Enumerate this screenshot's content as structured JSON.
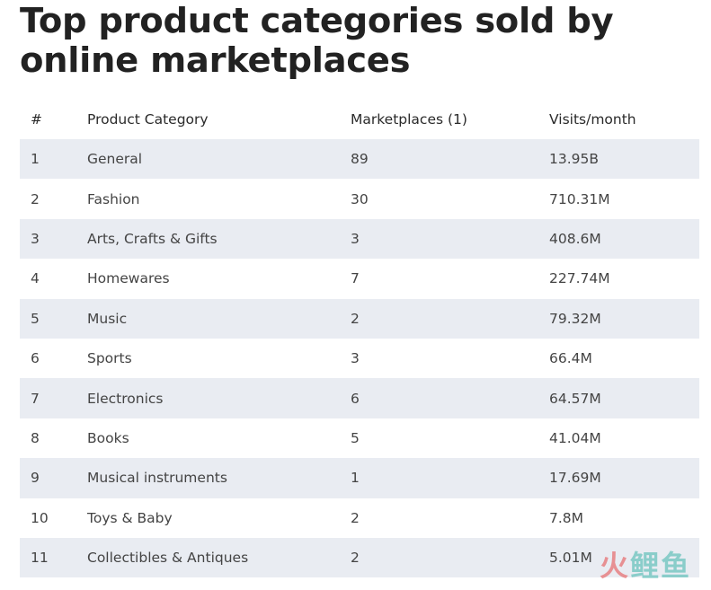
{
  "title": "Top product categories sold by online marketplaces",
  "table": {
    "headers": {
      "rank": "#",
      "category": "Product Category",
      "marketplaces": "Marketplaces (1)",
      "visits": "Visits/month"
    },
    "rows": [
      {
        "rank": "1",
        "category": "General",
        "marketplaces": "89",
        "visits": "13.95B"
      },
      {
        "rank": "2",
        "category": "Fashion",
        "marketplaces": "30",
        "visits": "710.31M"
      },
      {
        "rank": "3",
        "category": "Arts, Crafts & Gifts",
        "marketplaces": "3",
        "visits": "408.6M"
      },
      {
        "rank": "4",
        "category": "Homewares",
        "marketplaces": "7",
        "visits": "227.74M"
      },
      {
        "rank": "5",
        "category": "Music",
        "marketplaces": "2",
        "visits": "79.32M"
      },
      {
        "rank": "6",
        "category": "Sports",
        "marketplaces": "3",
        "visits": "66.4M"
      },
      {
        "rank": "7",
        "category": "Electronics",
        "marketplaces": "6",
        "visits": "64.57M"
      },
      {
        "rank": "8",
        "category": "Books",
        "marketplaces": "5",
        "visits": "41.04M"
      },
      {
        "rank": "9",
        "category": "Musical instruments",
        "marketplaces": "1",
        "visits": "17.69M"
      },
      {
        "rank": "10",
        "category": "Toys & Baby",
        "marketplaces": "2",
        "visits": "7.8M"
      },
      {
        "rank": "11",
        "category": "Collectibles & Antiques",
        "marketplaces": "2",
        "visits": "5.01M"
      }
    ]
  },
  "watermark": {
    "part1": "火",
    "part2": "鲤鱼"
  },
  "colors": {
    "stripe": "#e9ecf2",
    "title": "#222222",
    "text": "#444444"
  }
}
